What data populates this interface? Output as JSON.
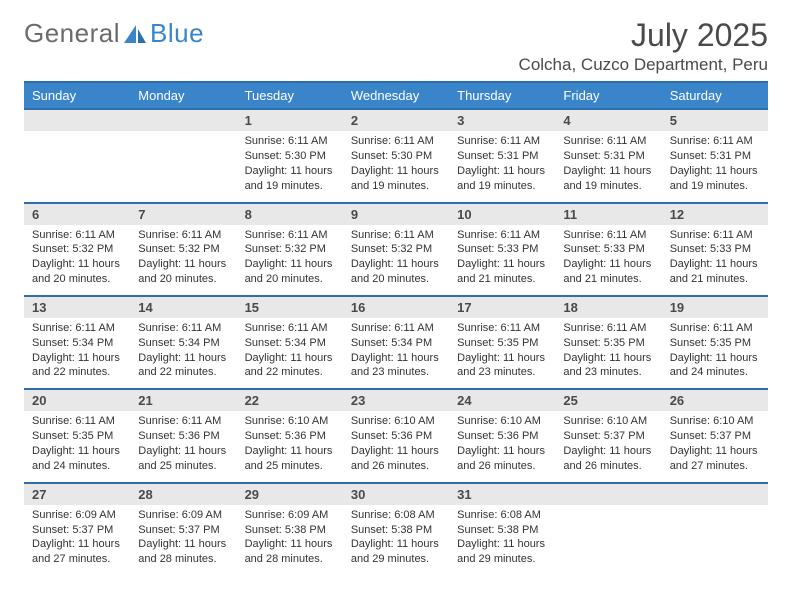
{
  "brand": {
    "part1": "General",
    "part2": "Blue"
  },
  "title": "July 2025",
  "location": "Colcha, Cuzco Department, Peru",
  "colors": {
    "header_bg": "#3a85c9",
    "divider": "#2d6fab",
    "daynum_bg": "#e8e8e8",
    "text": "#4a4a4a",
    "cell_text": "#333333",
    "logo_gray": "#6b6b6b",
    "background": "#ffffff"
  },
  "fonts": {
    "title_size": 32,
    "location_size": 17,
    "dow_size": 13,
    "daynum_size": 13,
    "cell_size": 11
  },
  "dow": [
    "Sunday",
    "Monday",
    "Tuesday",
    "Wednesday",
    "Thursday",
    "Friday",
    "Saturday"
  ],
  "weeks": [
    [
      null,
      null,
      {
        "n": "1",
        "sunrise": "6:11 AM",
        "sunset": "5:30 PM",
        "daylight": "11 hours and 19 minutes."
      },
      {
        "n": "2",
        "sunrise": "6:11 AM",
        "sunset": "5:30 PM",
        "daylight": "11 hours and 19 minutes."
      },
      {
        "n": "3",
        "sunrise": "6:11 AM",
        "sunset": "5:31 PM",
        "daylight": "11 hours and 19 minutes."
      },
      {
        "n": "4",
        "sunrise": "6:11 AM",
        "sunset": "5:31 PM",
        "daylight": "11 hours and 19 minutes."
      },
      {
        "n": "5",
        "sunrise": "6:11 AM",
        "sunset": "5:31 PM",
        "daylight": "11 hours and 19 minutes."
      }
    ],
    [
      {
        "n": "6",
        "sunrise": "6:11 AM",
        "sunset": "5:32 PM",
        "daylight": "11 hours and 20 minutes."
      },
      {
        "n": "7",
        "sunrise": "6:11 AM",
        "sunset": "5:32 PM",
        "daylight": "11 hours and 20 minutes."
      },
      {
        "n": "8",
        "sunrise": "6:11 AM",
        "sunset": "5:32 PM",
        "daylight": "11 hours and 20 minutes."
      },
      {
        "n": "9",
        "sunrise": "6:11 AM",
        "sunset": "5:32 PM",
        "daylight": "11 hours and 20 minutes."
      },
      {
        "n": "10",
        "sunrise": "6:11 AM",
        "sunset": "5:33 PM",
        "daylight": "11 hours and 21 minutes."
      },
      {
        "n": "11",
        "sunrise": "6:11 AM",
        "sunset": "5:33 PM",
        "daylight": "11 hours and 21 minutes."
      },
      {
        "n": "12",
        "sunrise": "6:11 AM",
        "sunset": "5:33 PM",
        "daylight": "11 hours and 21 minutes."
      }
    ],
    [
      {
        "n": "13",
        "sunrise": "6:11 AM",
        "sunset": "5:34 PM",
        "daylight": "11 hours and 22 minutes."
      },
      {
        "n": "14",
        "sunrise": "6:11 AM",
        "sunset": "5:34 PM",
        "daylight": "11 hours and 22 minutes."
      },
      {
        "n": "15",
        "sunrise": "6:11 AM",
        "sunset": "5:34 PM",
        "daylight": "11 hours and 22 minutes."
      },
      {
        "n": "16",
        "sunrise": "6:11 AM",
        "sunset": "5:34 PM",
        "daylight": "11 hours and 23 minutes."
      },
      {
        "n": "17",
        "sunrise": "6:11 AM",
        "sunset": "5:35 PM",
        "daylight": "11 hours and 23 minutes."
      },
      {
        "n": "18",
        "sunrise": "6:11 AM",
        "sunset": "5:35 PM",
        "daylight": "11 hours and 23 minutes."
      },
      {
        "n": "19",
        "sunrise": "6:11 AM",
        "sunset": "5:35 PM",
        "daylight": "11 hours and 24 minutes."
      }
    ],
    [
      {
        "n": "20",
        "sunrise": "6:11 AM",
        "sunset": "5:35 PM",
        "daylight": "11 hours and 24 minutes."
      },
      {
        "n": "21",
        "sunrise": "6:11 AM",
        "sunset": "5:36 PM",
        "daylight": "11 hours and 25 minutes."
      },
      {
        "n": "22",
        "sunrise": "6:10 AM",
        "sunset": "5:36 PM",
        "daylight": "11 hours and 25 minutes."
      },
      {
        "n": "23",
        "sunrise": "6:10 AM",
        "sunset": "5:36 PM",
        "daylight": "11 hours and 26 minutes."
      },
      {
        "n": "24",
        "sunrise": "6:10 AM",
        "sunset": "5:36 PM",
        "daylight": "11 hours and 26 minutes."
      },
      {
        "n": "25",
        "sunrise": "6:10 AM",
        "sunset": "5:37 PM",
        "daylight": "11 hours and 26 minutes."
      },
      {
        "n": "26",
        "sunrise": "6:10 AM",
        "sunset": "5:37 PM",
        "daylight": "11 hours and 27 minutes."
      }
    ],
    [
      {
        "n": "27",
        "sunrise": "6:09 AM",
        "sunset": "5:37 PM",
        "daylight": "11 hours and 27 minutes."
      },
      {
        "n": "28",
        "sunrise": "6:09 AM",
        "sunset": "5:37 PM",
        "daylight": "11 hours and 28 minutes."
      },
      {
        "n": "29",
        "sunrise": "6:09 AM",
        "sunset": "5:38 PM",
        "daylight": "11 hours and 28 minutes."
      },
      {
        "n": "30",
        "sunrise": "6:08 AM",
        "sunset": "5:38 PM",
        "daylight": "11 hours and 29 minutes."
      },
      {
        "n": "31",
        "sunrise": "6:08 AM",
        "sunset": "5:38 PM",
        "daylight": "11 hours and 29 minutes."
      },
      null,
      null
    ]
  ],
  "labels": {
    "sunrise": "Sunrise: ",
    "sunset": "Sunset: ",
    "daylight": "Daylight: "
  }
}
